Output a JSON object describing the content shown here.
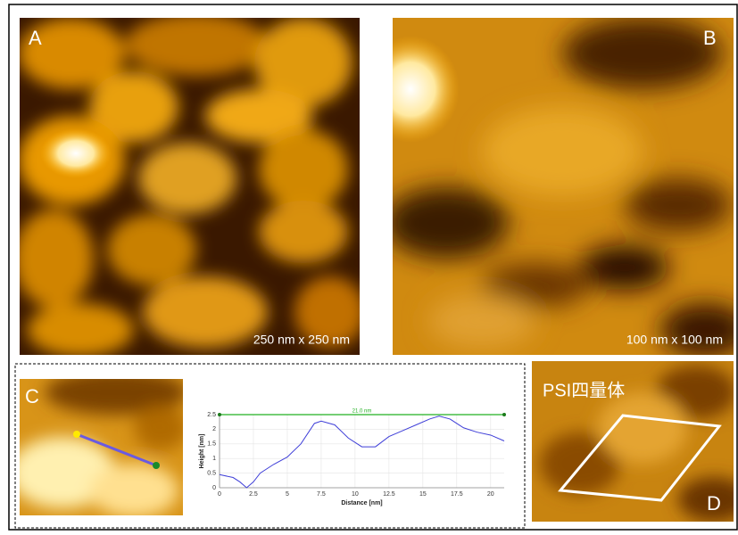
{
  "panels": {
    "a": {
      "label": "A",
      "scale": "250 nm x 250 nm"
    },
    "b": {
      "label": "B",
      "scale": "100 nm x 100 nm"
    },
    "c": {
      "label": "C"
    },
    "d": {
      "label": "D",
      "caption": "PSI四量体"
    }
  },
  "chart_data": {
    "type": "line",
    "xlabel": "Distance [nm]",
    "ylabel": "Height [nm]",
    "x": [
      0,
      1,
      1.5,
      2,
      2.5,
      3,
      4,
      5,
      6,
      7,
      7.5,
      8.5,
      9.5,
      10.5,
      11.5,
      12.5,
      13.5,
      14.5,
      15.5,
      16.2,
      17,
      18,
      19,
      20,
      21
    ],
    "series": [
      {
        "color": "#3f3fd8",
        "values": [
          0.45,
          0.35,
          0.2,
          0.0,
          0.2,
          0.5,
          0.8,
          1.05,
          1.5,
          2.2,
          2.28,
          2.15,
          1.7,
          1.4,
          1.4,
          1.75,
          1.95,
          2.15,
          2.35,
          2.45,
          2.35,
          2.05,
          1.9,
          1.8,
          1.6
        ]
      }
    ],
    "measure": {
      "label": "21.0 nm",
      "x": [
        0,
        21
      ],
      "y": 2.5,
      "color": "#22b022"
    },
    "xlim": [
      0,
      21
    ],
    "ylim": [
      0,
      2.5
    ],
    "xticks": [
      0,
      2.5,
      5,
      7.5,
      10,
      12.5,
      15,
      17.5,
      20
    ],
    "yticks": [
      0,
      0.5,
      1,
      1.5,
      2,
      2.5
    ],
    "grid": true
  }
}
